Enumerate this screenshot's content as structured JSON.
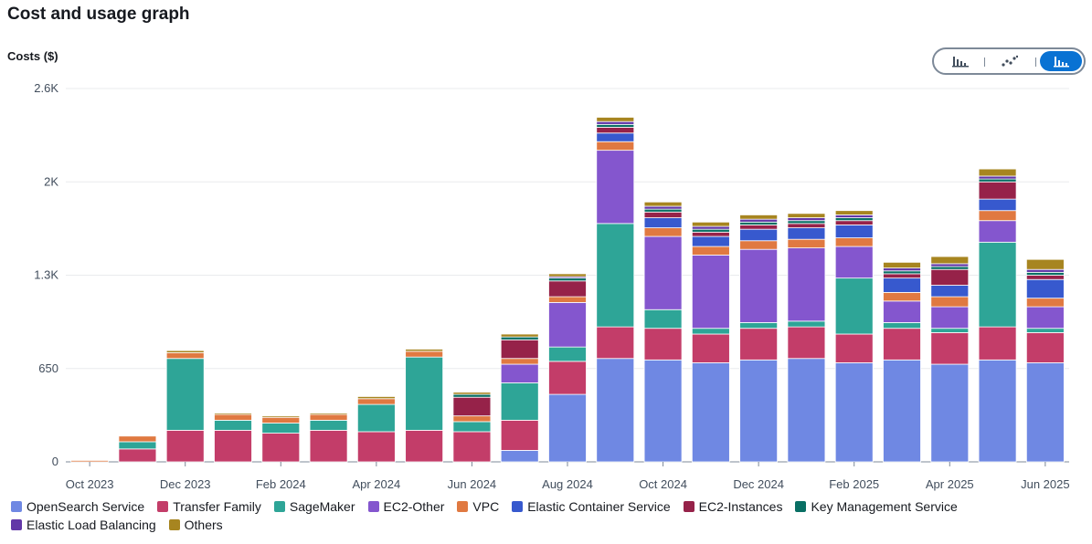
{
  "page": {
    "title": "Cost and usage graph",
    "y_axis_label": "Costs ($)"
  },
  "chart_type_toggle": [
    {
      "name": "bar-chart-icon",
      "label": "Bar chart",
      "selected": false
    },
    {
      "name": "line-chart-icon",
      "label": "Line chart",
      "selected": false
    },
    {
      "name": "stacked-bar-chart-icon",
      "label": "Stacked bar chart",
      "selected": true
    }
  ],
  "chart_data": {
    "type": "bar",
    "stacked": true,
    "title": "Cost and usage graph",
    "ylabel": "Costs ($)",
    "xlabel": "",
    "ylim": [
      0,
      2600
    ],
    "yticks": [
      0,
      650,
      1300,
      1950,
      2600
    ],
    "ytick_labels": [
      "0",
      "650",
      "1.3K",
      "2K",
      "2.6K"
    ],
    "grid": true,
    "legend_position": "bottom",
    "categories": [
      "Oct 2023",
      "Nov 2023",
      "Dec 2023",
      "Jan 2024",
      "Feb 2024",
      "Mar 2024",
      "Apr 2024",
      "May 2024",
      "Jun 2024",
      "Jul 2024",
      "Aug 2024",
      "Sep 2024",
      "Oct 2024",
      "Nov 2024",
      "Dec 2024",
      "Jan 2025",
      "Feb 2025",
      "Mar 2025",
      "Apr 2025",
      "May 2025",
      "Jun 2025"
    ],
    "xtick_labels": [
      "Oct 2023",
      "",
      "Dec 2023",
      "",
      "Feb 2024",
      "",
      "Apr 2024",
      "",
      "Jun 2024",
      "",
      "Aug 2024",
      "",
      "Oct 2024",
      "",
      "Dec 2024",
      "",
      "Feb 2025",
      "",
      "Apr 2025",
      "",
      "Jun 2025"
    ],
    "series": [
      {
        "name": "OpenSearch Service",
        "color": "#6f88e3",
        "values": [
          0,
          0,
          0,
          0,
          0,
          0,
          0,
          0,
          0,
          80,
          470,
          720,
          710,
          690,
          710,
          720,
          690,
          710,
          680,
          710,
          690
        ]
      },
      {
        "name": "Transfer Family",
        "color": "#c33d69",
        "values": [
          0,
          90,
          220,
          220,
          200,
          220,
          210,
          220,
          210,
          210,
          230,
          220,
          220,
          200,
          220,
          220,
          200,
          220,
          220,
          230,
          210
        ]
      },
      {
        "name": "SageMaker",
        "color": "#2ea597",
        "values": [
          0,
          50,
          500,
          70,
          70,
          70,
          190,
          510,
          70,
          260,
          100,
          720,
          130,
          40,
          40,
          40,
          390,
          40,
          30,
          590,
          30
        ]
      },
      {
        "name": "EC2-Other",
        "color": "#8456ce",
        "values": [
          0,
          0,
          0,
          0,
          0,
          0,
          0,
          0,
          0,
          130,
          310,
          510,
          510,
          510,
          510,
          510,
          220,
          150,
          150,
          150,
          150
        ]
      },
      {
        "name": "VPC",
        "color": "#e07941",
        "values": [
          10,
          40,
          40,
          40,
          40,
          40,
          40,
          40,
          40,
          40,
          40,
          60,
          60,
          60,
          60,
          60,
          60,
          60,
          70,
          70,
          60
        ]
      },
      {
        "name": "Elastic Container Service",
        "color": "#3759ce",
        "values": [
          0,
          0,
          0,
          0,
          0,
          0,
          0,
          0,
          0,
          0,
          0,
          60,
          70,
          70,
          80,
          80,
          90,
          100,
          80,
          80,
          130
        ]
      },
      {
        "name": "EC2-Instances",
        "color": "#962249",
        "values": [
          0,
          0,
          0,
          0,
          0,
          0,
          0,
          0,
          130,
          130,
          110,
          40,
          40,
          30,
          30,
          30,
          30,
          30,
          110,
          120,
          30
        ]
      },
      {
        "name": "Key Management Service",
        "color": "#096f64",
        "values": [
          0,
          0,
          0,
          0,
          0,
          0,
          0,
          0,
          20,
          20,
          20,
          20,
          20,
          20,
          20,
          20,
          20,
          20,
          20,
          20,
          20
        ]
      },
      {
        "name": "Elastic Load Balancing",
        "color": "#6237a7",
        "values": [
          0,
          0,
          0,
          0,
          0,
          0,
          0,
          0,
          0,
          0,
          10,
          20,
          20,
          20,
          20,
          20,
          20,
          20,
          20,
          20,
          20
        ]
      },
      {
        "name": "Others",
        "color": "#a78520",
        "values": [
          0,
          5,
          15,
          10,
          10,
          10,
          15,
          15,
          15,
          20,
          20,
          30,
          30,
          30,
          30,
          30,
          30,
          40,
          50,
          50,
          70
        ]
      }
    ]
  }
}
